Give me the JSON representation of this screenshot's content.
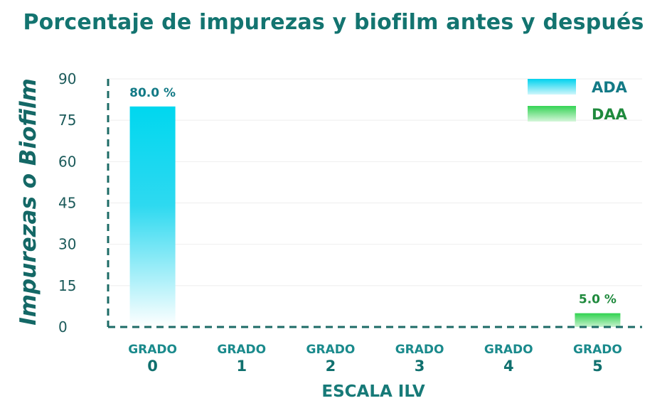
{
  "chart_data": {
    "type": "bar",
    "title": "Porcentaje de impurezas y biofilm antes y después",
    "xlabel": "ESCALA ILV",
    "ylabel": "Impurezas o Biofilm",
    "ylim": [
      0,
      90
    ],
    "yticks": [
      "0",
      "15",
      "30",
      "45",
      "60",
      "75",
      "90"
    ],
    "categories": [
      {
        "line1": "GRADO",
        "line2": "0"
      },
      {
        "line1": "GRADO",
        "line2": "1"
      },
      {
        "line1": "GRADO",
        "line2": "2"
      },
      {
        "line1": "GRADO",
        "line2": "3"
      },
      {
        "line1": "GRADO",
        "line2": "4"
      },
      {
        "line1": "GRADO",
        "line2": "5"
      }
    ],
    "series": [
      {
        "name": "ADA",
        "color": "#00d4ee",
        "values": [
          80,
          0,
          0,
          0,
          0,
          0
        ],
        "labels": [
          "80.0 %",
          "",
          "",
          "",
          "",
          ""
        ]
      },
      {
        "name": "DAA",
        "color": "#2bd04e",
        "values": [
          0,
          0,
          0,
          0,
          0,
          5
        ],
        "labels": [
          "",
          "",
          "",
          "",
          "",
          "5.0 %"
        ]
      }
    ],
    "legend_position": "top-right",
    "grid": true
  },
  "colors": {
    "axis": "#1d6b66",
    "grid": "#eeeeee",
    "ada_label": "#137a86",
    "daa_label": "#1f8a3d"
  }
}
